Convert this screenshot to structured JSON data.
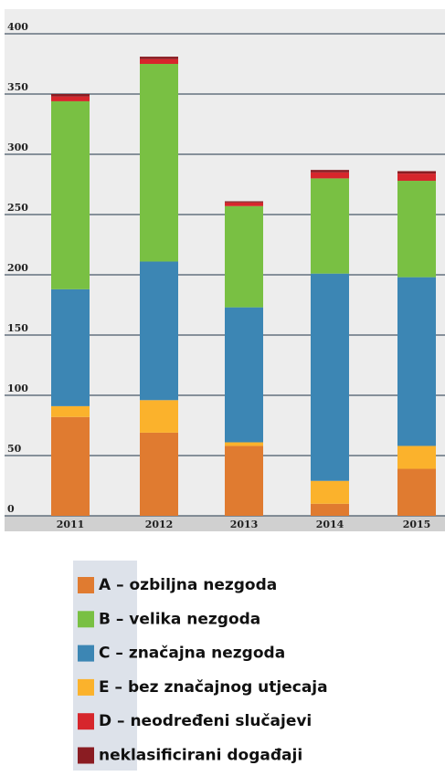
{
  "chart_data": {
    "type": "bar",
    "stacked": true,
    "categories": [
      "2011",
      "2012",
      "2013",
      "2014",
      "2015"
    ],
    "series": [
      {
        "name": "A – ozbiljna nezgoda",
        "color": "#e07b30",
        "values": [
          82,
          69,
          58,
          10,
          39
        ]
      },
      {
        "name": "B – velika nezgoda",
        "color": "#79c043",
        "values": [
          156,
          164,
          84,
          79,
          80
        ]
      },
      {
        "name": "C – značajna nezgoda",
        "color": "#3c86b4",
        "values": [
          97,
          115,
          112,
          172,
          140
        ]
      },
      {
        "name": "E – bez značajnog utjecaja",
        "color": "#fbb22c",
        "values": [
          9,
          27,
          3,
          19,
          19
        ]
      },
      {
        "name": "D – neodređeni slučajevi",
        "color": "#d6262c",
        "values": [
          4,
          4,
          3,
          5,
          6
        ]
      },
      {
        "name": "neklasificirani događaji",
        "color": "#8a1c22",
        "values": [
          2,
          2,
          1,
          2,
          2
        ]
      }
    ],
    "ylim": [
      0,
      400
    ],
    "yticks": [
      0,
      50,
      100,
      150,
      200,
      250,
      300,
      350,
      400
    ],
    "grid": true
  }
}
